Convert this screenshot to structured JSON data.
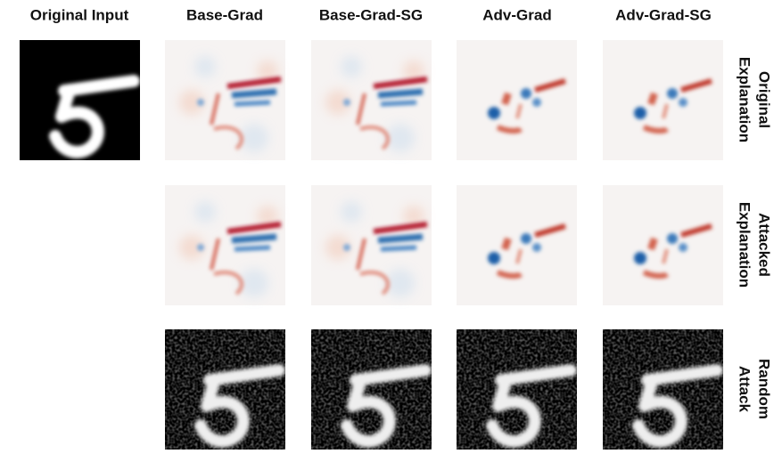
{
  "columns": [
    "Original Input",
    "Base-Grad",
    "Base-Grad-SG",
    "Adv-Grad",
    "Adv-Grad-SG"
  ],
  "row_labels": [
    [
      "Original",
      "Explanation"
    ],
    [
      "Attacked",
      "Explanation"
    ],
    [
      "Random",
      "Attack"
    ]
  ]
}
